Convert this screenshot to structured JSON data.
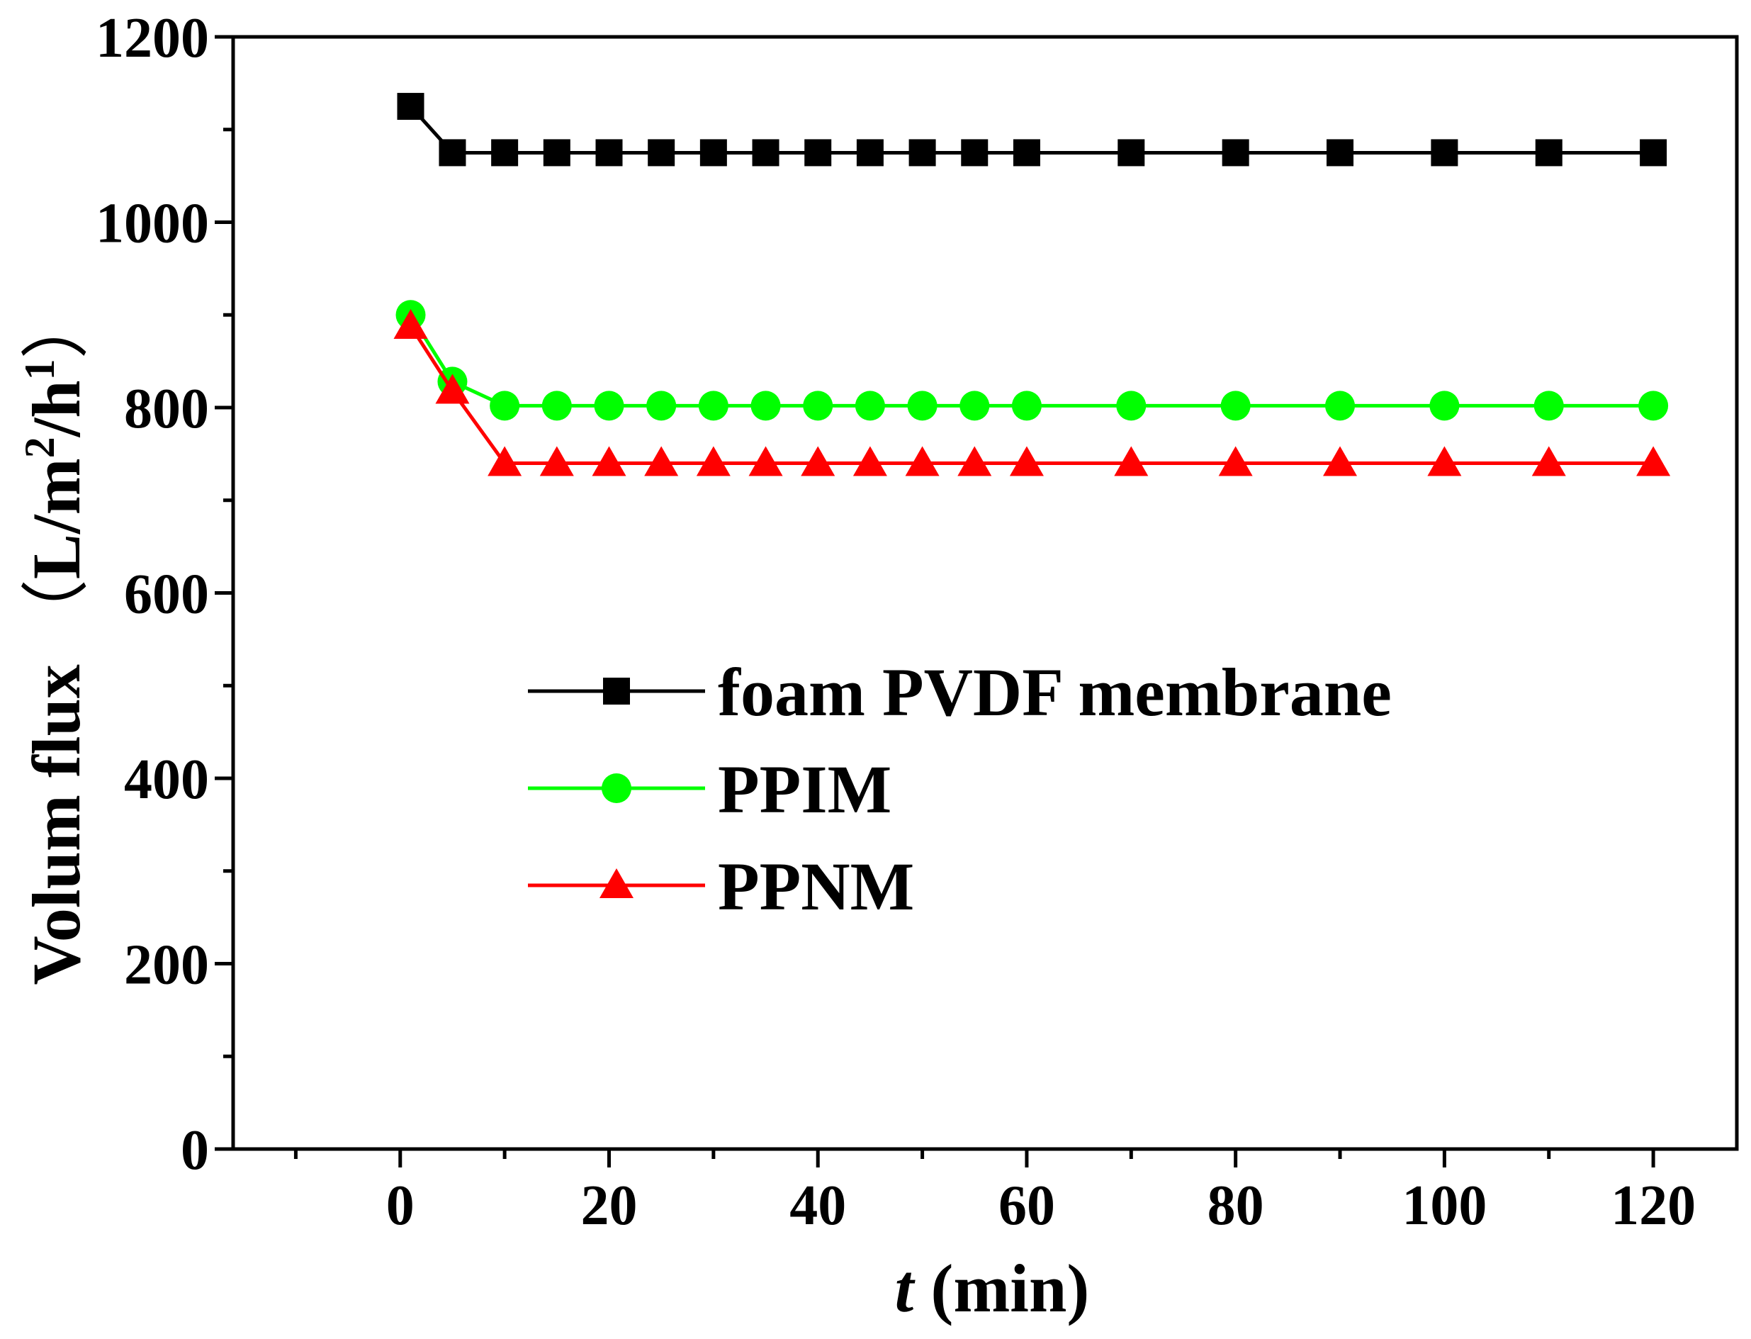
{
  "chart_data": {
    "type": "line",
    "title": "",
    "xlabel": {
      "var": "t",
      "unit": " (min)"
    },
    "ylabel": {
      "main": "Volum flux ",
      "open": "（",
      "unit_a": "L/m",
      "sup_a": "2",
      "unit_b": "/h",
      "sup_b": "1",
      "close": "）"
    },
    "xlim": [
      -16,
      128
    ],
    "ylim": [
      0,
      1200
    ],
    "xticks": [
      0,
      20,
      40,
      60,
      80,
      100,
      120
    ],
    "yticks": [
      0,
      200,
      400,
      600,
      800,
      1000,
      1200
    ],
    "x": [
      1,
      5,
      10,
      15,
      20,
      25,
      30,
      35,
      40,
      45,
      50,
      55,
      60,
      70,
      80,
      90,
      100,
      110,
      120
    ],
    "series": [
      {
        "name": "foam PVDF membrane",
        "color": "#000000",
        "marker": "square",
        "values": [
          1125,
          1075,
          1075,
          1075,
          1075,
          1075,
          1075,
          1075,
          1075,
          1075,
          1075,
          1075,
          1075,
          1075,
          1075,
          1075,
          1075,
          1075,
          1075
        ]
      },
      {
        "name": "PPIM",
        "color": "#00ff00",
        "marker": "circle",
        "values": [
          900,
          828,
          802,
          802,
          802,
          802,
          802,
          802,
          802,
          802,
          802,
          802,
          802,
          802,
          802,
          802,
          802,
          802,
          802
        ]
      },
      {
        "name": "PPNM",
        "color": "#ff0000",
        "marker": "triangle",
        "values": [
          888,
          818,
          740,
          740,
          740,
          740,
          740,
          740,
          740,
          740,
          740,
          740,
          740,
          740,
          740,
          740,
          740,
          740,
          740
        ]
      }
    ],
    "legend": {
      "position": "center-left"
    },
    "grid": false
  }
}
